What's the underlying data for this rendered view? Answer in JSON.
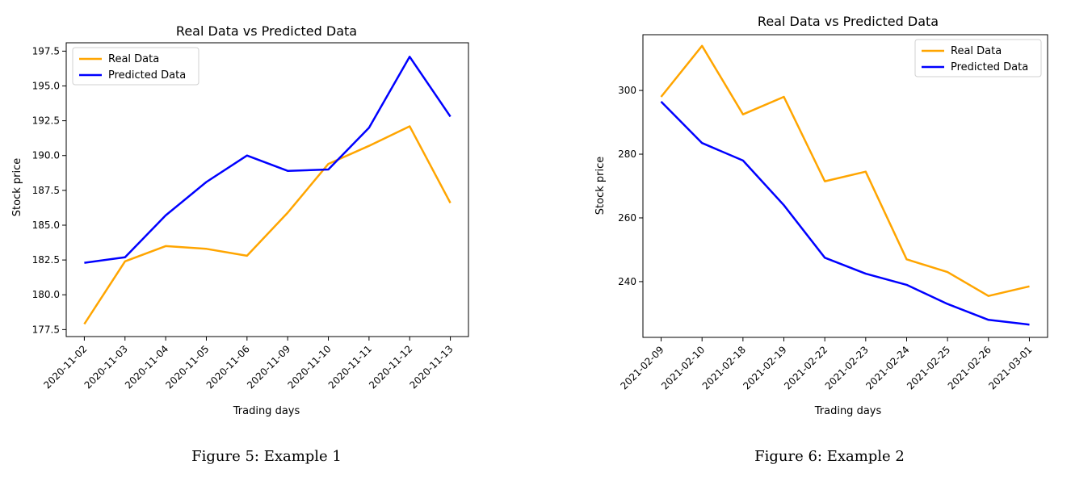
{
  "figures": [
    {
      "caption": "Figure 5: Example 1"
    },
    {
      "caption": "Figure 6: Example 2"
    }
  ],
  "chart_data": [
    {
      "type": "line",
      "title": "Real Data vs Predicted Data",
      "xlabel": "Trading days",
      "ylabel": "Stock price",
      "categories": [
        "2020-11-02",
        "2020-11-03",
        "2020-11-04",
        "2020-11-05",
        "2020-11-06",
        "2020-11-09",
        "2020-11-10",
        "2020-11-11",
        "2020-11-12",
        "2020-11-13"
      ],
      "yticks": [
        "177.5",
        "180.0",
        "182.5",
        "185.0",
        "187.5",
        "190.0",
        "192.5",
        "195.0",
        "197.5"
      ],
      "ylim": [
        177.0,
        198.1
      ],
      "legend_position": "top-left",
      "grid": false,
      "series": [
        {
          "name": "Real Data",
          "color": "#FFA500",
          "values": [
            177.9,
            182.4,
            183.5,
            183.3,
            182.8,
            185.9,
            189.4,
            190.7,
            192.1,
            186.6
          ]
        },
        {
          "name": "Predicted Data",
          "color": "#0000FF",
          "values": [
            182.3,
            182.7,
            185.7,
            188.1,
            190.0,
            188.9,
            189.0,
            192.0,
            197.1,
            192.8
          ]
        }
      ]
    },
    {
      "type": "line",
      "title": "Real Data vs Predicted Data",
      "xlabel": "Trading days",
      "ylabel": "Stock price",
      "categories": [
        "2021-02-09",
        "2021-02-10",
        "2021-02-18",
        "2021-02-19",
        "2021-02-22",
        "2021-02-23",
        "2021-02-24",
        "2021-02-25",
        "2021-02-26",
        "2021-03-01"
      ],
      "yticks": [
        "240",
        "260",
        "280",
        "300"
      ],
      "ylim": [
        222.5,
        317.5
      ],
      "legend_position": "top-right",
      "grid": false,
      "series": [
        {
          "name": "Real Data",
          "color": "#FFA500",
          "values": [
            298.0,
            314.0,
            292.5,
            298.0,
            271.5,
            274.5,
            247.0,
            243.0,
            235.5,
            238.5
          ]
        },
        {
          "name": "Predicted Data",
          "color": "#0000FF",
          "values": [
            296.5,
            283.5,
            278.0,
            264.0,
            247.5,
            242.5,
            239.0,
            233.0,
            228.0,
            226.5
          ]
        }
      ]
    }
  ]
}
